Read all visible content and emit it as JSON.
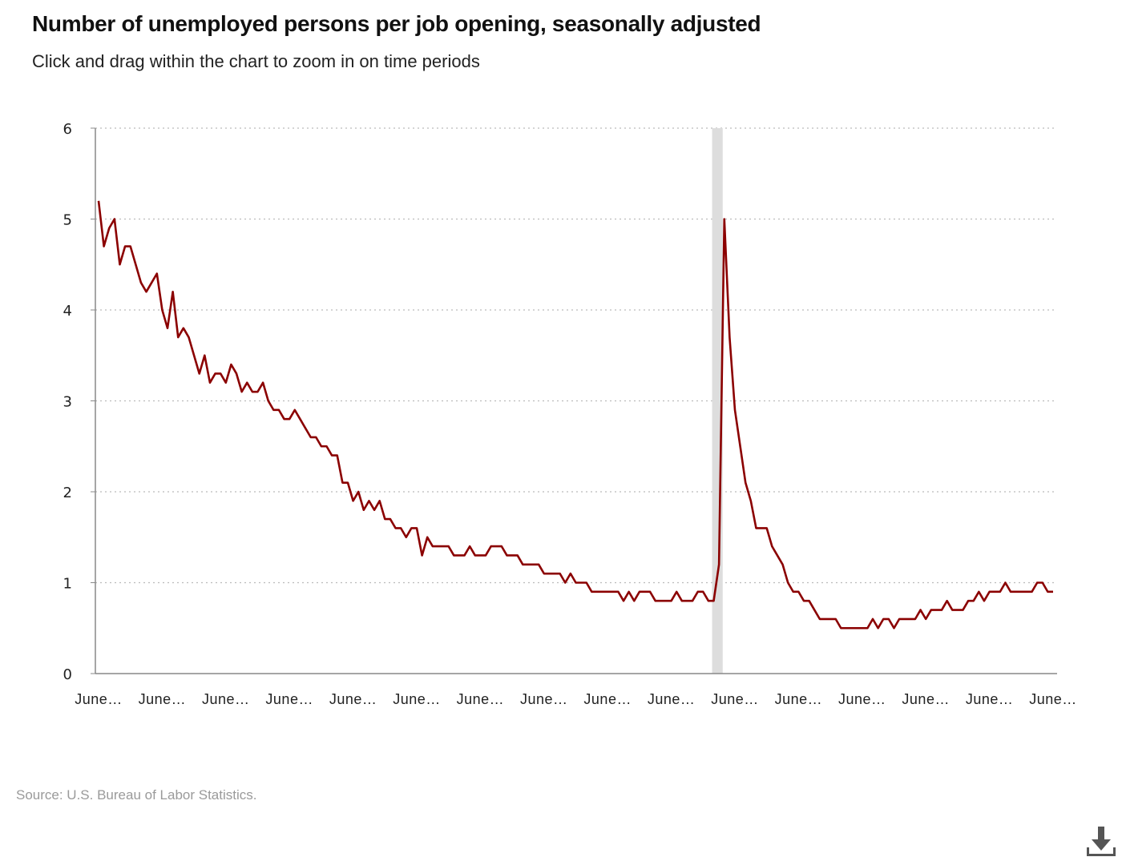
{
  "header": {
    "title": "Number of unemployed persons per job opening, seasonally adjusted",
    "subtitle": "Click and drag within the chart to zoom in on time periods"
  },
  "footer": {
    "source": "Source: U.S. Bureau of Labor Statistics."
  },
  "colors": {
    "line": "#8b0000",
    "grid": "#bbbbbb",
    "recession_band": "#dddddd",
    "axis": "#888888"
  },
  "icons": {
    "download": "download-icon"
  },
  "chart_data": {
    "type": "line",
    "title": "Number of unemployed persons per job opening, seasonally adjusted",
    "xlabel": "",
    "ylabel": "",
    "ylim": [
      0,
      6
    ],
    "yticks": [
      0,
      1,
      2,
      3,
      4,
      5,
      6
    ],
    "xtick_labels": [
      "June…",
      "June…",
      "June…",
      "June…",
      "June…",
      "June…",
      "June…",
      "June…",
      "June…",
      "June…",
      "June…",
      "June…",
      "June…",
      "June…",
      "June…",
      "June…"
    ],
    "grid": "horizontal dotted",
    "legend": "none",
    "shaded_region_index_range": [
      116,
      118
    ],
    "series": [
      {
        "values": [
          5.2,
          4.7,
          4.9,
          5.0,
          4.5,
          4.7,
          4.7,
          4.5,
          4.3,
          4.2,
          4.3,
          4.4,
          4.0,
          3.8,
          4.2,
          3.7,
          3.8,
          3.7,
          3.5,
          3.3,
          3.5,
          3.2,
          3.3,
          3.3,
          3.2,
          3.4,
          3.3,
          3.1,
          3.2,
          3.1,
          3.1,
          3.2,
          3.0,
          2.9,
          2.9,
          2.8,
          2.8,
          2.9,
          2.8,
          2.7,
          2.6,
          2.6,
          2.5,
          2.5,
          2.4,
          2.4,
          2.1,
          2.1,
          1.9,
          2.0,
          1.8,
          1.9,
          1.8,
          1.9,
          1.7,
          1.7,
          1.6,
          1.6,
          1.5,
          1.6,
          1.6,
          1.3,
          1.5,
          1.4,
          1.4,
          1.4,
          1.4,
          1.3,
          1.3,
          1.3,
          1.4,
          1.3,
          1.3,
          1.3,
          1.4,
          1.4,
          1.4,
          1.3,
          1.3,
          1.3,
          1.2,
          1.2,
          1.2,
          1.2,
          1.1,
          1.1,
          1.1,
          1.1,
          1.0,
          1.1,
          1.0,
          1.0,
          1.0,
          0.9,
          0.9,
          0.9,
          0.9,
          0.9,
          0.9,
          0.8,
          0.9,
          0.8,
          0.9,
          0.9,
          0.9,
          0.8,
          0.8,
          0.8,
          0.8,
          0.9,
          0.8,
          0.8,
          0.8,
          0.9,
          0.9,
          0.8,
          0.8,
          1.2,
          5.0,
          3.7,
          2.9,
          2.5,
          2.1,
          1.9,
          1.6,
          1.6,
          1.6,
          1.4,
          1.3,
          1.2,
          1.0,
          0.9,
          0.9,
          0.8,
          0.8,
          0.7,
          0.6,
          0.6,
          0.6,
          0.6,
          0.5,
          0.5,
          0.5,
          0.5,
          0.5,
          0.5,
          0.6,
          0.5,
          0.6,
          0.6,
          0.5,
          0.6,
          0.6,
          0.6,
          0.6,
          0.7,
          0.6,
          0.7,
          0.7,
          0.7,
          0.8,
          0.7,
          0.7,
          0.7,
          0.8,
          0.8,
          0.9,
          0.8,
          0.9,
          0.9,
          0.9,
          1.0,
          0.9,
          0.9,
          0.9,
          0.9,
          0.9,
          1.0,
          1.0,
          0.9,
          0.9
        ]
      }
    ]
  }
}
